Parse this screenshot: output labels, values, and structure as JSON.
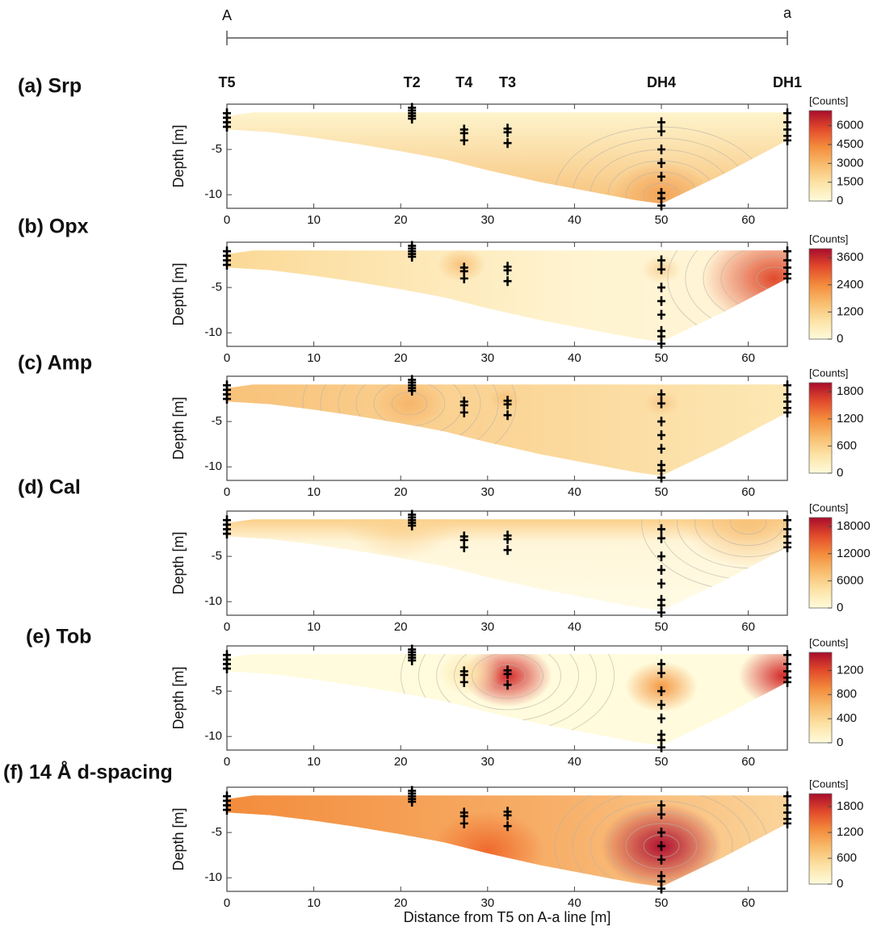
{
  "header": {
    "left": "A",
    "right": "a"
  },
  "boreholes": [
    {
      "label": "T5",
      "x": 0,
      "samples": [
        -1,
        -1.5,
        -2,
        -2.5
      ]
    },
    {
      "label": "T2",
      "x": 21.3,
      "samples": [
        -0.4,
        -0.7,
        -1,
        -1.3,
        -1.6
      ]
    },
    {
      "label": "T4",
      "x": 27.3,
      "samples": [
        -2.8,
        -3.2,
        -4
      ]
    },
    {
      "label": "T3",
      "x": 32.3,
      "samples": [
        -2.7,
        -3.1,
        -4.3
      ]
    },
    {
      "label": "DH4",
      "x": 50,
      "samples": [
        -2,
        -3,
        -5,
        -6.5,
        -8,
        -9.8,
        -10.4,
        -11.2
      ]
    },
    {
      "label": "DH1",
      "x": 64.5,
      "samples": [
        -1,
        -2,
        -2.8,
        -3.5,
        -4
      ]
    }
  ],
  "colormap": [
    "#fffbdc",
    "#fce3a6",
    "#f8bd6e",
    "#f38c3c",
    "#e24a2b",
    "#a80d2c"
  ],
  "chart_data": [
    {
      "type": "contour",
      "title": "(a) Srp",
      "ylabel": "Depth [m]",
      "xlim": [
        0,
        64.5
      ],
      "ylim": [
        -11.5,
        0
      ],
      "xticks": [
        0,
        10,
        20,
        30,
        40,
        50,
        60
      ],
      "yticks": [
        -5,
        -10
      ],
      "colorbar_label": "[Counts]",
      "clim": [
        0,
        7200
      ],
      "cticks": [
        0,
        1500,
        3000,
        4500,
        6000
      ]
    },
    {
      "type": "contour",
      "title": "(b) Opx",
      "ylabel": "Depth [m]",
      "xlim": [
        0,
        64.5
      ],
      "ylim": [
        -11.5,
        0
      ],
      "xticks": [
        0,
        10,
        20,
        30,
        40,
        50,
        60
      ],
      "yticks": [
        -5,
        -10
      ],
      "colorbar_label": "[Counts]",
      "clim": [
        0,
        4000
      ],
      "cticks": [
        0,
        1200,
        2400,
        3600
      ]
    },
    {
      "type": "contour",
      "title": "(c) Amp",
      "ylabel": "Depth [m]",
      "xlim": [
        0,
        64.5
      ],
      "ylim": [
        -11.5,
        0
      ],
      "xticks": [
        0,
        10,
        20,
        30,
        40,
        50,
        60
      ],
      "yticks": [
        -5,
        -10
      ],
      "colorbar_label": "[Counts]",
      "clim": [
        0,
        2000
      ],
      "cticks": [
        0,
        600,
        1200,
        1800
      ]
    },
    {
      "type": "contour",
      "title": "(d) Cal",
      "ylabel": "Depth [m]",
      "xlim": [
        0,
        64.5
      ],
      "ylim": [
        -11.5,
        0
      ],
      "xticks": [
        0,
        10,
        20,
        30,
        40,
        50,
        60
      ],
      "yticks": [
        -5,
        -10
      ],
      "colorbar_label": "[Counts]",
      "clim": [
        0,
        20000
      ],
      "cticks": [
        0,
        6000,
        12000,
        18000
      ]
    },
    {
      "type": "contour",
      "title": "(e) Tob",
      "ylabel": "Depth [m]",
      "xlim": [
        0,
        64.5
      ],
      "ylim": [
        -11.5,
        0
      ],
      "xticks": [
        0,
        10,
        20,
        30,
        40,
        50,
        60
      ],
      "yticks": [
        -5,
        -10
      ],
      "colorbar_label": "[Counts]",
      "clim": [
        0,
        1500
      ],
      "cticks": [
        0,
        400,
        800,
        1200
      ]
    },
    {
      "type": "contour",
      "title": "(f) 14 Å d-spacing",
      "ylabel": "Depth [m]",
      "xlabel": "Distance from T5 on A-a line [m]",
      "xlim": [
        0,
        64.5
      ],
      "ylim": [
        -11.5,
        0
      ],
      "xticks": [
        0,
        10,
        20,
        30,
        40,
        50,
        60
      ],
      "yticks": [
        -5,
        -10
      ],
      "colorbar_label": "[Counts]",
      "clim": [
        0,
        2100
      ],
      "cticks": [
        0,
        600,
        1200,
        1800
      ]
    }
  ]
}
